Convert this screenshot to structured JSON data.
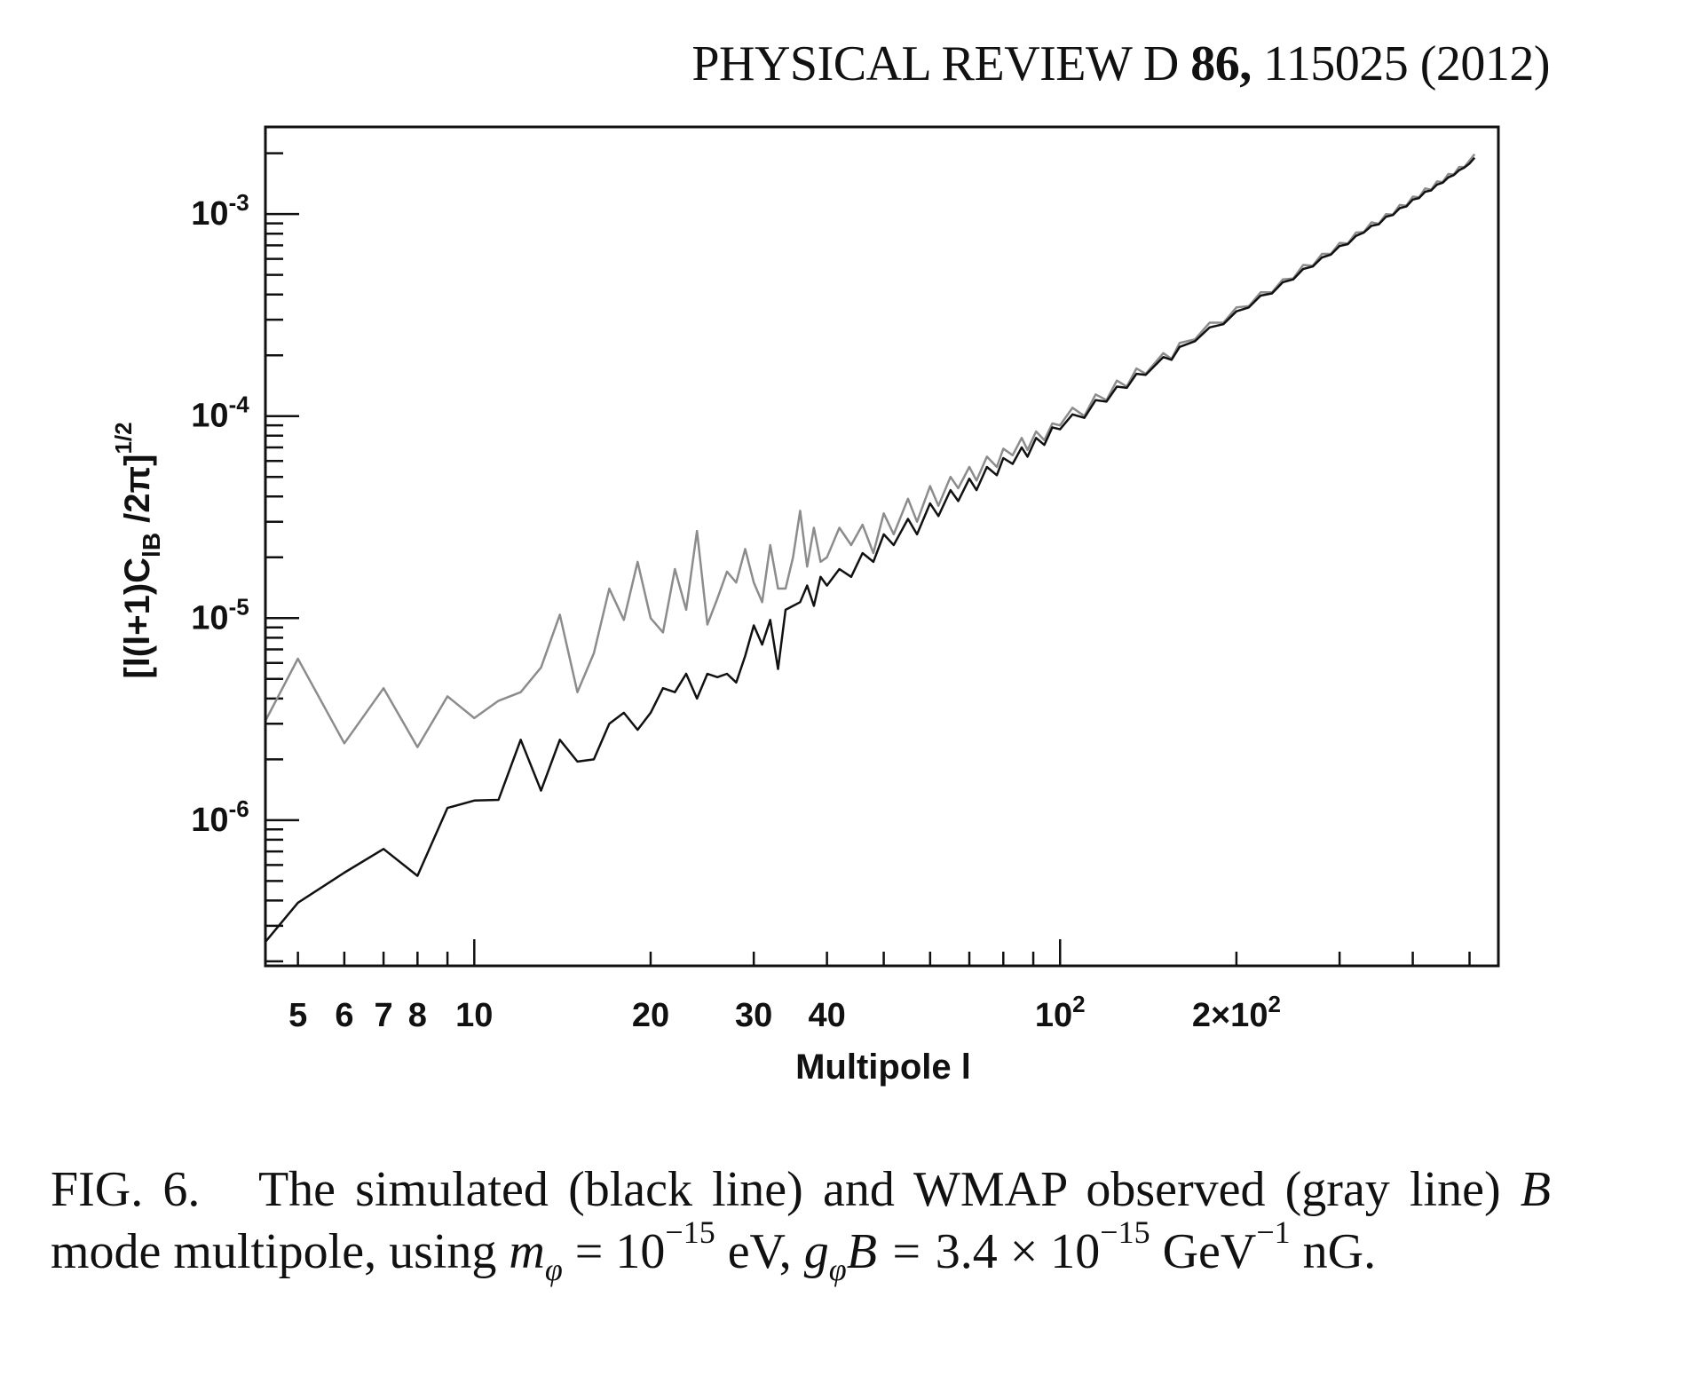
{
  "header": {
    "journal": "PHYSICAL REVIEW D",
    "volume": "86,",
    "article": "115025 (2012)"
  },
  "caption": {
    "label": "FIG. 6.",
    "text1": "The simulated (black line) and WMAP observed (gray line)",
    "B": "B",
    "text2": "mode multipole, using",
    "m": "m",
    "phi": "φ",
    "eq1": "= 10",
    "exp1": "−15",
    "unit1": "eV,",
    "g": "g",
    "eq2": "B =",
    "coef": "3.4 × 10",
    "exp2": "−15",
    "unit2": "GeV",
    "exp3": "−1",
    "unit3": "nG."
  },
  "chart_data": {
    "type": "line",
    "xscale": "log",
    "yscale": "log",
    "xlabel": "Multipole l",
    "ylabel": "[l(l+1)C_lB /2π]^1/2",
    "xlim": [
      4.4,
      560
    ],
    "ylim": [
      1.9e-07,
      0.0027
    ],
    "grid": false,
    "x_tick_labels": [
      {
        "value": 5,
        "label": "5"
      },
      {
        "value": 6,
        "label": "6"
      },
      {
        "value": 7,
        "label": "7"
      },
      {
        "value": 8,
        "label": "8"
      },
      {
        "value": 10,
        "label": "10"
      },
      {
        "value": 20,
        "label": "20"
      },
      {
        "value": 30,
        "label": "30"
      },
      {
        "value": 40,
        "label": "40"
      },
      {
        "value": 100,
        "label": "10",
        "sup": "2"
      },
      {
        "value": 200,
        "label": "2×10",
        "sup": "2"
      }
    ],
    "y_tick_labels": [
      {
        "value": 0.001,
        "label": "10",
        "sup": "-3"
      },
      {
        "value": 0.0001,
        "label": "10",
        "sup": "-4"
      },
      {
        "value": 1e-05,
        "label": "10",
        "sup": "-5"
      },
      {
        "value": 1e-06,
        "label": "10",
        "sup": "-6"
      }
    ],
    "series": [
      {
        "name": "WMAP observed (gray line)",
        "color": "#8c8c8c",
        "x": [
          4.4,
          5,
          6,
          7,
          8,
          9,
          10,
          11,
          12,
          13,
          14,
          15,
          16,
          17,
          18,
          19,
          20,
          21,
          22,
          23,
          24,
          25,
          26,
          27,
          28,
          29,
          30,
          31,
          32,
          33,
          34,
          35,
          36,
          37,
          38,
          39,
          40,
          42,
          44,
          46,
          48,
          50,
          52,
          55,
          57,
          60,
          62,
          65,
          67,
          70,
          72,
          75,
          78,
          80,
          83,
          86,
          88,
          91,
          94,
          97,
          100,
          105,
          110,
          115,
          120,
          125,
          130,
          135,
          140,
          150,
          155,
          160,
          170,
          180,
          190,
          200,
          210,
          220,
          230,
          240,
          250,
          260,
          270,
          280,
          290,
          300,
          310,
          320,
          330,
          340,
          350,
          360,
          370,
          380,
          390,
          400,
          410,
          420,
          430,
          440,
          450,
          460,
          470,
          480,
          490,
          500,
          510
        ],
        "y": [
          3.1e-06,
          6.3e-06,
          2.4e-06,
          4.5e-06,
          2.3e-06,
          4.1e-06,
          3.2e-06,
          3.9e-06,
          4.3e-06,
          5.7e-06,
          1.04e-05,
          4.3e-06,
          6.7e-06,
          1.4e-05,
          9.8e-06,
          1.9e-05,
          1e-05,
          8.5e-06,
          1.75e-05,
          1.1e-05,
          2.7e-05,
          9.3e-06,
          1.25e-05,
          1.7e-05,
          1.5e-05,
          2.2e-05,
          1.5e-05,
          1.2e-05,
          2.3e-05,
          1.4e-05,
          1.4e-05,
          2e-05,
          3.4e-05,
          1.8e-05,
          2.8e-05,
          1.9e-05,
          2e-05,
          2.8e-05,
          2.3e-05,
          2.9e-05,
          2.1e-05,
          3.3e-05,
          2.6e-05,
          3.9e-05,
          3e-05,
          4.5e-05,
          3.6e-05,
          5e-05,
          4.4e-05,
          5.6e-05,
          4.8e-05,
          6.3e-05,
          5.6e-05,
          6.9e-05,
          6.4e-05,
          7.8e-05,
          6.8e-05,
          8.4e-05,
          7.6e-05,
          9.2e-05,
          9e-05,
          0.00011,
          0.0001,
          0.000128,
          0.00012,
          0.00015,
          0.00014,
          0.000172,
          0.000162,
          0.000205,
          0.000192,
          0.00023,
          0.00024,
          0.00029,
          0.00029,
          0.000345,
          0.00035,
          0.00041,
          0.00041,
          0.000475,
          0.00048,
          0.00056,
          0.000555,
          0.000635,
          0.000635,
          0.00072,
          0.000715,
          0.00081,
          0.000815,
          0.00091,
          0.000895,
          0.001,
          0.000995,
          0.00111,
          0.0011,
          0.00122,
          0.00121,
          0.00134,
          0.00132,
          0.00145,
          0.00144,
          0.00158,
          0.00157,
          0.00171,
          0.00171,
          0.00184,
          0.00198
        ]
      },
      {
        "name": "simulated (black line)",
        "color": "#111111",
        "x": [
          4.4,
          5,
          6,
          7,
          8,
          9,
          10,
          11,
          12,
          13,
          14,
          15,
          16,
          17,
          18,
          19,
          20,
          21,
          22,
          23,
          24,
          25,
          26,
          27,
          28,
          29,
          30,
          31,
          32,
          33,
          34,
          36,
          37,
          38,
          39,
          40,
          42,
          44,
          46,
          48,
          50,
          52,
          55,
          57,
          60,
          62,
          65,
          67,
          70,
          72,
          75,
          78,
          80,
          83,
          86,
          88,
          91,
          94,
          97,
          100,
          105,
          110,
          115,
          120,
          125,
          130,
          135,
          140,
          150,
          155,
          160,
          170,
          180,
          190,
          200,
          210,
          220,
          230,
          240,
          250,
          260,
          270,
          280,
          290,
          300,
          310,
          320,
          330,
          340,
          350,
          360,
          370,
          380,
          390,
          400,
          410,
          420,
          430,
          440,
          450,
          460,
          470,
          480,
          490,
          500,
          510
        ],
        "y": [
          2.5e-07,
          3.9e-07,
          5.5e-07,
          7.2e-07,
          5.3e-07,
          1.15e-06,
          1.25e-06,
          1.26e-06,
          2.5e-06,
          1.4e-06,
          2.5e-06,
          1.95e-06,
          2e-06,
          3e-06,
          3.4e-06,
          2.8e-06,
          3.4e-06,
          4.5e-06,
          4.3e-06,
          5.3e-06,
          4e-06,
          5.3e-06,
          5.1e-06,
          5.3e-06,
          4.8e-06,
          6.5e-06,
          9.2e-06,
          7.4e-06,
          9.8e-06,
          5.6e-06,
          1.1e-05,
          1.2e-05,
          1.45e-05,
          1.15e-05,
          1.6e-05,
          1.45e-05,
          1.75e-05,
          1.6e-05,
          2.1e-05,
          1.9e-05,
          2.6e-05,
          2.3e-05,
          3.1e-05,
          2.6e-05,
          3.7e-05,
          3.2e-05,
          4.3e-05,
          3.8e-05,
          4.9e-05,
          4.3e-05,
          5.6e-05,
          5.1e-05,
          6.2e-05,
          5.8e-05,
          7e-05,
          6.3e-05,
          7.8e-05,
          7.2e-05,
          8.8e-05,
          8.6e-05,
          0.000102,
          9.8e-05,
          0.00012,
          0.000118,
          0.00014,
          0.000138,
          0.000162,
          0.00016,
          0.000196,
          0.00019,
          0.00022,
          0.000235,
          0.000275,
          0.000285,
          0.00033,
          0.000345,
          0.000395,
          0.000405,
          0.00046,
          0.000475,
          0.000535,
          0.00055,
          0.00061,
          0.00063,
          0.000695,
          0.00071,
          0.00078,
          0.00081,
          0.000875,
          0.00089,
          0.00097,
          0.00099,
          0.00107,
          0.00109,
          0.00118,
          0.0012,
          0.00129,
          0.00131,
          0.0014,
          0.00143,
          0.00152,
          0.00156,
          0.00165,
          0.0017,
          0.00178,
          0.0019
        ]
      }
    ]
  }
}
